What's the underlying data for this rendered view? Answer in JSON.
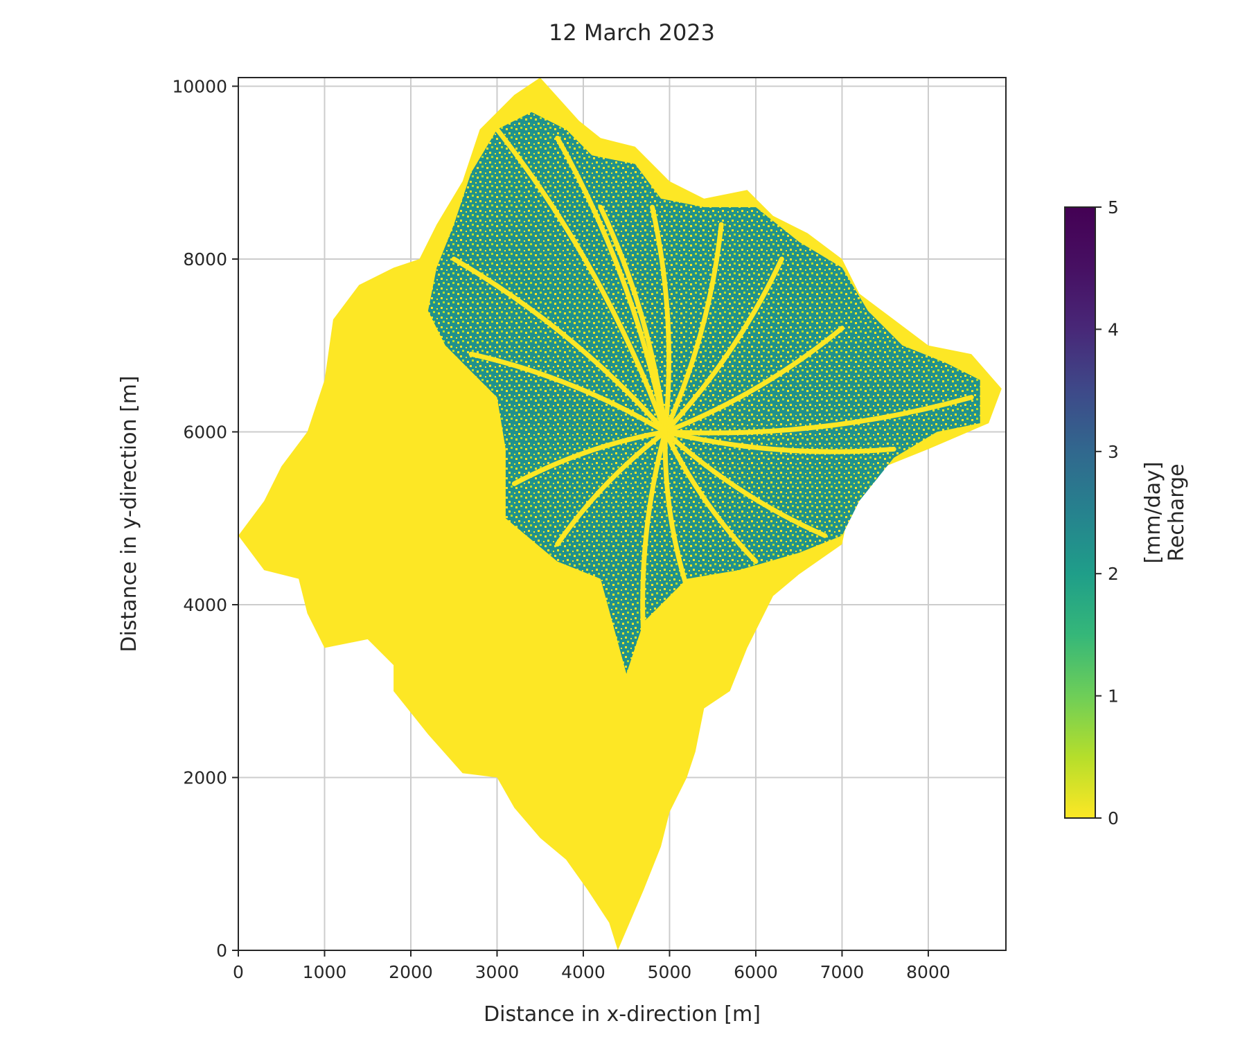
{
  "chart_data": {
    "type": "heatmap",
    "title": "12 March 2023",
    "xlabel": "Distance in x-direction [m]",
    "ylabel": "Distance in y-direction [m]",
    "xlim": [
      0,
      8900
    ],
    "ylim": [
      0,
      10100
    ],
    "xticks": [
      0,
      1000,
      2000,
      3000,
      4000,
      5000,
      6000,
      7000,
      8000
    ],
    "yticks": [
      0,
      2000,
      4000,
      6000,
      8000,
      10000
    ],
    "grid": true,
    "colormap": "viridis_r",
    "colorbar": {
      "label_line1": "[mm/day]",
      "label_line2": "Recharge",
      "range": [
        0,
        5
      ],
      "ticks": [
        0,
        1,
        2,
        3,
        4,
        5
      ]
    },
    "catchment_outline": [
      [
        4400,
        0
      ],
      [
        4300,
        320
      ],
      [
        4050,
        700
      ],
      [
        3800,
        1050
      ],
      [
        3500,
        1300
      ],
      [
        3200,
        1650
      ],
      [
        3000,
        2000
      ],
      [
        2600,
        2050
      ],
      [
        2200,
        2500
      ],
      [
        1800,
        3000
      ],
      [
        1800,
        3300
      ],
      [
        1500,
        3600
      ],
      [
        1000,
        3500
      ],
      [
        800,
        3900
      ],
      [
        700,
        4300
      ],
      [
        300,
        4400
      ],
      [
        0,
        4800
      ],
      [
        300,
        5200
      ],
      [
        500,
        5600
      ],
      [
        800,
        6000
      ],
      [
        1000,
        6600
      ],
      [
        1100,
        7300
      ],
      [
        1400,
        7700
      ],
      [
        1800,
        7900
      ],
      [
        2100,
        8000
      ],
      [
        2300,
        8400
      ],
      [
        2600,
        8900
      ],
      [
        2800,
        9500
      ],
      [
        3200,
        9900
      ],
      [
        3500,
        10100
      ],
      [
        3950,
        9600
      ],
      [
        4200,
        9400
      ],
      [
        4600,
        9300
      ],
      [
        5000,
        8900
      ],
      [
        5400,
        8700
      ],
      [
        5900,
        8800
      ],
      [
        6200,
        8500
      ],
      [
        6600,
        8300
      ],
      [
        7000,
        8000
      ],
      [
        7200,
        7600
      ],
      [
        7600,
        7300
      ],
      [
        8000,
        7000
      ],
      [
        8500,
        6900
      ],
      [
        8850,
        6500
      ],
      [
        8700,
        6100
      ],
      [
        8000,
        5800
      ],
      [
        7500,
        5600
      ],
      [
        7100,
        5200
      ],
      [
        7000,
        4700
      ],
      [
        6500,
        4350
      ],
      [
        6200,
        4100
      ],
      [
        5900,
        3500
      ],
      [
        5700,
        3000
      ],
      [
        5400,
        2800
      ],
      [
        5300,
        2300
      ],
      [
        5200,
        2000
      ],
      [
        5000,
        1600
      ],
      [
        4900,
        1200
      ],
      [
        4700,
        700
      ],
      [
        4400,
        0
      ]
    ],
    "high_recharge_zone": [
      [
        4500,
        3200
      ],
      [
        4700,
        3800
      ],
      [
        5200,
        4300
      ],
      [
        5800,
        4400
      ],
      [
        6500,
        4600
      ],
      [
        7000,
        4800
      ],
      [
        7200,
        5200
      ],
      [
        7600,
        5700
      ],
      [
        8100,
        6000
      ],
      [
        8600,
        6100
      ],
      [
        8600,
        6600
      ],
      [
        8200,
        6800
      ],
      [
        7700,
        7000
      ],
      [
        7300,
        7400
      ],
      [
        7000,
        7900
      ],
      [
        6500,
        8200
      ],
      [
        6000,
        8600
      ],
      [
        5400,
        8600
      ],
      [
        4900,
        8700
      ],
      [
        4600,
        9100
      ],
      [
        4100,
        9200
      ],
      [
        3800,
        9500
      ],
      [
        3400,
        9700
      ],
      [
        3000,
        9500
      ],
      [
        2700,
        9000
      ],
      [
        2500,
        8400
      ],
      [
        2300,
        7900
      ],
      [
        2200,
        7400
      ],
      [
        2400,
        7000
      ],
      [
        2700,
        6700
      ],
      [
        3000,
        6400
      ],
      [
        3100,
        5800
      ],
      [
        3100,
        5000
      ],
      [
        3700,
        4500
      ],
      [
        4200,
        4300
      ],
      [
        4500,
        3200
      ]
    ],
    "zone_values_mm_per_day": {
      "dominant_low": 0.0,
      "dominant_high": 2.4
    }
  }
}
